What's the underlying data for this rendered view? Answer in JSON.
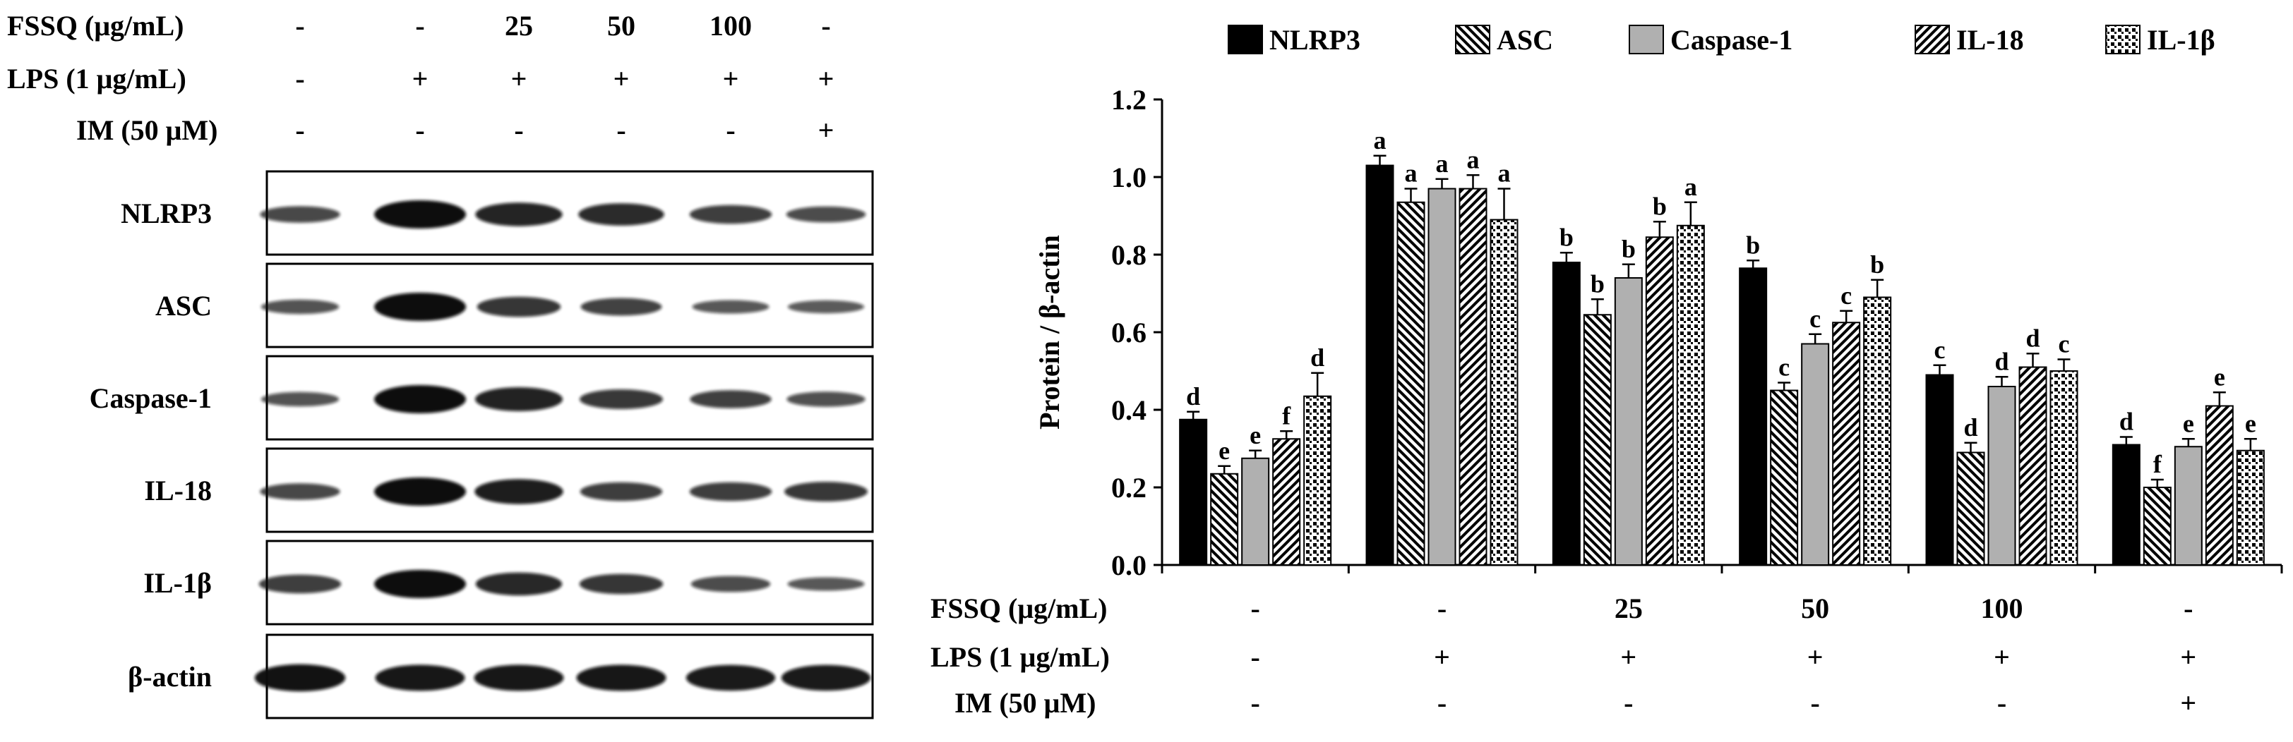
{
  "treatment_rows": [
    {
      "label": "FSSQ  (μg/mL)",
      "values": [
        "-",
        "-",
        "25",
        "50",
        "100",
        "-"
      ]
    },
    {
      "label": "LPS (1 μg/mL)",
      "values": [
        "-",
        "+",
        "+",
        "+",
        "+",
        "+"
      ]
    },
    {
      "label": "IM (50 μM)",
      "values": [
        "-",
        "-",
        "-",
        "-",
        "-",
        "+"
      ]
    }
  ],
  "blot": {
    "proteins": [
      "NLRP3",
      "ASC",
      "Caspase-1",
      "IL-18",
      "IL-1β",
      "β-actin"
    ],
    "band_intensity": [
      [
        0.45,
        1.0,
        0.78,
        0.72,
        0.55,
        0.42
      ],
      [
        0.35,
        1.0,
        0.62,
        0.5,
        0.3,
        0.28
      ],
      [
        0.35,
        1.0,
        0.8,
        0.6,
        0.52,
        0.38
      ],
      [
        0.45,
        1.0,
        0.85,
        0.55,
        0.55,
        0.6
      ],
      [
        0.55,
        1.0,
        0.75,
        0.62,
        0.42,
        0.3
      ],
      [
        0.95,
        0.9,
        0.9,
        0.9,
        0.88,
        0.88
      ]
    ]
  },
  "chart_data": {
    "type": "bar",
    "ylabel": "Protein / β-actin",
    "ylim": [
      0,
      1.2
    ],
    "yticks": [
      "0.0",
      "0.2",
      "0.4",
      "0.6",
      "0.8",
      "1.0",
      "1.2"
    ],
    "groups": 6,
    "legend_position": "top",
    "series": [
      {
        "name": "NLRP3",
        "pattern": "solid",
        "values": [
          0.375,
          1.03,
          0.78,
          0.765,
          0.49,
          0.31
        ],
        "errors": [
          0.02,
          0.025,
          0.025,
          0.02,
          0.025,
          0.02
        ],
        "letters": [
          "d",
          "a",
          "b",
          "b",
          "c",
          "d"
        ]
      },
      {
        "name": "ASC",
        "pattern": "hatch-back",
        "values": [
          0.235,
          0.935,
          0.645,
          0.45,
          0.29,
          0.2
        ],
        "errors": [
          0.02,
          0.035,
          0.04,
          0.02,
          0.025,
          0.02
        ],
        "letters": [
          "e",
          "a",
          "b",
          "c",
          "d",
          "f"
        ]
      },
      {
        "name": "Caspase-1",
        "pattern": "gray",
        "values": [
          0.275,
          0.97,
          0.74,
          0.57,
          0.46,
          0.305
        ],
        "errors": [
          0.02,
          0.025,
          0.035,
          0.025,
          0.025,
          0.02
        ],
        "letters": [
          "e",
          "a",
          "b",
          "c",
          "d",
          "e"
        ]
      },
      {
        "name": "IL-18",
        "pattern": "hatch-forward",
        "values": [
          0.325,
          0.97,
          0.845,
          0.625,
          0.51,
          0.41
        ],
        "errors": [
          0.02,
          0.035,
          0.04,
          0.03,
          0.035,
          0.035
        ],
        "letters": [
          "f",
          "a",
          "b",
          "c",
          "d",
          "e"
        ]
      },
      {
        "name": "IL-1β",
        "pattern": "dots",
        "values": [
          0.435,
          0.89,
          0.875,
          0.69,
          0.5,
          0.295
        ],
        "errors": [
          0.06,
          0.08,
          0.06,
          0.045,
          0.03,
          0.03
        ],
        "letters": [
          "d",
          "a",
          "a",
          "b",
          "c",
          "e"
        ]
      }
    ]
  },
  "colors": {
    "bar_fill": "#000000",
    "gray_fill": "#b0b0b0",
    "band": "#0d0d0d"
  }
}
